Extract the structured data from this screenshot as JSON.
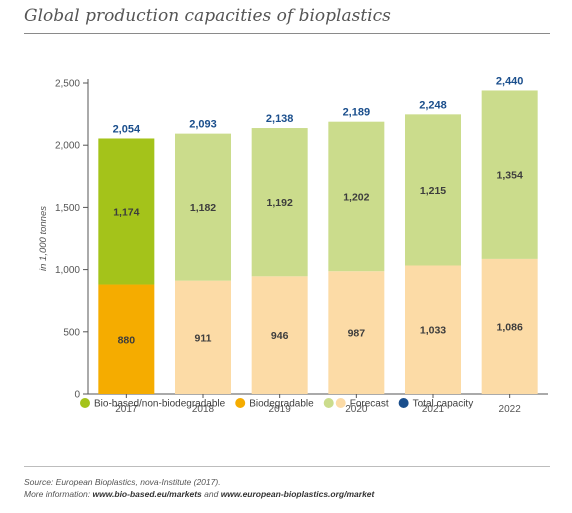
{
  "title": "Global production capacities of bioplastics",
  "chart_data": {
    "type": "bar",
    "stacked": true,
    "categories": [
      "2017",
      "2018",
      "2019",
      "2020",
      "2021",
      "2022"
    ],
    "series": [
      {
        "name": "Biodegradable",
        "values": [
          880,
          911,
          946,
          987,
          1033,
          1086
        ],
        "labels": [
          "880",
          "911",
          "946",
          "987",
          "1,033",
          "1,086"
        ]
      },
      {
        "name": "Bio-based/non-biodegradable",
        "values": [
          1174,
          1182,
          1192,
          1202,
          1215,
          1354
        ],
        "labels": [
          "1,174",
          "1,182",
          "1,192",
          "1,202",
          "1,215",
          "1,354"
        ]
      }
    ],
    "totals": {
      "name": "Total capacity",
      "values": [
        2054,
        2093,
        2138,
        2189,
        2248,
        2440
      ],
      "labels": [
        "2,054",
        "2,093",
        "2,138",
        "2,189",
        "2,248",
        "2,440"
      ]
    },
    "forecast_from_index": 1,
    "ylabel": "in 1,000 tonnes",
    "ylim": [
      0,
      2500
    ],
    "yticks": [
      0,
      500,
      1000,
      1500,
      2000,
      2500
    ],
    "ytick_labels": [
      "0",
      "500",
      "1,000",
      "1,500",
      "2,000",
      "2,500"
    ],
    "legend": {
      "placement": "bottom",
      "items": [
        {
          "label": "Bio-based/non-biodegradable",
          "colors": [
            "#a4c31a"
          ]
        },
        {
          "label": "Biodegradable",
          "colors": [
            "#f5ac00"
          ]
        },
        {
          "label": "Forecast",
          "colors": [
            "#cbdc8c",
            "#fcdba6"
          ]
        },
        {
          "label": "Total capacity",
          "colors": [
            "#1a4e8c"
          ]
        }
      ]
    },
    "colors": {
      "biobased": "#a4c31a",
      "biodegradable": "#f5ac00",
      "forecast_biobased": "#cbdc8c",
      "forecast_biodegradable": "#fcdba6",
      "total_label": "#1a4e8c",
      "segment_label": "#3d3d3d",
      "axis": "#555555"
    }
  },
  "source": {
    "line1": "Source: European Bioplastics, nova-Institute (2017).",
    "line2_prefix": "More information: ",
    "link1": "www.bio-based.eu/markets",
    "line2_and": " and ",
    "link2": "www.european-bioplastics.org/market"
  }
}
